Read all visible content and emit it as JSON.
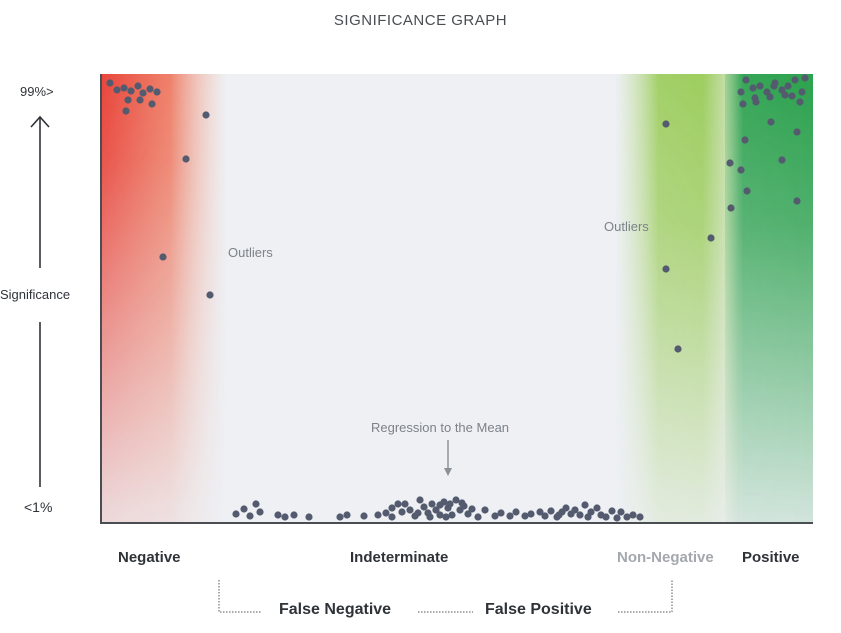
{
  "chart_data": {
    "type": "scatter",
    "title": "SIGNIFICANCE GRAPH",
    "ylabel": "Significance",
    "y_tick_labels": {
      "top": "99%>",
      "bottom": "<1%"
    },
    "x_zones": [
      "Negative",
      "Indeterminate",
      "Non-Negative",
      "Positive"
    ],
    "bracket_labels": [
      "False Negative",
      "False Positive"
    ],
    "annotations": [
      "Outliers",
      "Outliers",
      "Regression to the Mean"
    ],
    "colors": {
      "negative": "#e8372c",
      "non_negative": "#8cc63f",
      "positive": "#1a9a3e",
      "indeterminate_band": "#eef0f4",
      "points": "#545b6e",
      "axis": "#4a4d52"
    },
    "points": [
      [
        110,
        83
      ],
      [
        117,
        90
      ],
      [
        124,
        88
      ],
      [
        131,
        91
      ],
      [
        138,
        86
      ],
      [
        143,
        93
      ],
      [
        150,
        89
      ],
      [
        157,
        92
      ],
      [
        128,
        100
      ],
      [
        140,
        100
      ],
      [
        152,
        104
      ],
      [
        126,
        111
      ],
      [
        206,
        115
      ],
      [
        186,
        159
      ],
      [
        163,
        257
      ],
      [
        210,
        295
      ],
      [
        746,
        80
      ],
      [
        753,
        88
      ],
      [
        760,
        86
      ],
      [
        767,
        92
      ],
      [
        775,
        83
      ],
      [
        782,
        90
      ],
      [
        788,
        86
      ],
      [
        795,
        80
      ],
      [
        802,
        92
      ],
      [
        743,
        104
      ],
      [
        756,
        102
      ],
      [
        770,
        97
      ],
      [
        785,
        95
      ],
      [
        800,
        102
      ],
      [
        805,
        78
      ],
      [
        774,
        86
      ],
      [
        741,
        92
      ],
      [
        755,
        98
      ],
      [
        792,
        96
      ],
      [
        771,
        122
      ],
      [
        797,
        132
      ],
      [
        745,
        140
      ],
      [
        782,
        160
      ],
      [
        730,
        163
      ],
      [
        741,
        170
      ],
      [
        747,
        191
      ],
      [
        731,
        208
      ],
      [
        797,
        201
      ],
      [
        666,
        124
      ],
      [
        711,
        238
      ],
      [
        666,
        269
      ],
      [
        678,
        349
      ],
      [
        236,
        514
      ],
      [
        244,
        509
      ],
      [
        250,
        516
      ],
      [
        256,
        504
      ],
      [
        260,
        512
      ],
      [
        278,
        515
      ],
      [
        285,
        517
      ],
      [
        294,
        515
      ],
      [
        309,
        517
      ],
      [
        340,
        517
      ],
      [
        347,
        515
      ],
      [
        364,
        516
      ],
      [
        378,
        515
      ],
      [
        386,
        513
      ],
      [
        392,
        508
      ],
      [
        398,
        504
      ],
      [
        402,
        512
      ],
      [
        410,
        510
      ],
      [
        415,
        516
      ],
      [
        420,
        500
      ],
      [
        424,
        507
      ],
      [
        428,
        513
      ],
      [
        432,
        504
      ],
      [
        436,
        510
      ],
      [
        440,
        515
      ],
      [
        444,
        502
      ],
      [
        448,
        508
      ],
      [
        452,
        515
      ],
      [
        456,
        500
      ],
      [
        460,
        510
      ],
      [
        464,
        506
      ],
      [
        468,
        514
      ],
      [
        472,
        509
      ],
      [
        478,
        517
      ],
      [
        485,
        510
      ],
      [
        495,
        516
      ],
      [
        501,
        513
      ],
      [
        510,
        516
      ],
      [
        516,
        512
      ],
      [
        525,
        516
      ],
      [
        531,
        514
      ],
      [
        540,
        512
      ],
      [
        545,
        516
      ],
      [
        551,
        511
      ],
      [
        557,
        517
      ],
      [
        562,
        512
      ],
      [
        566,
        508
      ],
      [
        571,
        514
      ],
      [
        575,
        510
      ],
      [
        580,
        515
      ],
      [
        585,
        505
      ],
      [
        591,
        512
      ],
      [
        597,
        508
      ],
      [
        601,
        515
      ],
      [
        606,
        517
      ],
      [
        612,
        511
      ],
      [
        617,
        518
      ],
      [
        621,
        512
      ],
      [
        627,
        517
      ],
      [
        633,
        515
      ],
      [
        640,
        517
      ],
      [
        392,
        517
      ],
      [
        405,
        504
      ],
      [
        418,
        513
      ],
      [
        440,
        505
      ],
      [
        450,
        504
      ],
      [
        462,
        503
      ],
      [
        430,
        517
      ],
      [
        446,
        517
      ],
      [
        559,
        515
      ],
      [
        588,
        517
      ]
    ]
  }
}
